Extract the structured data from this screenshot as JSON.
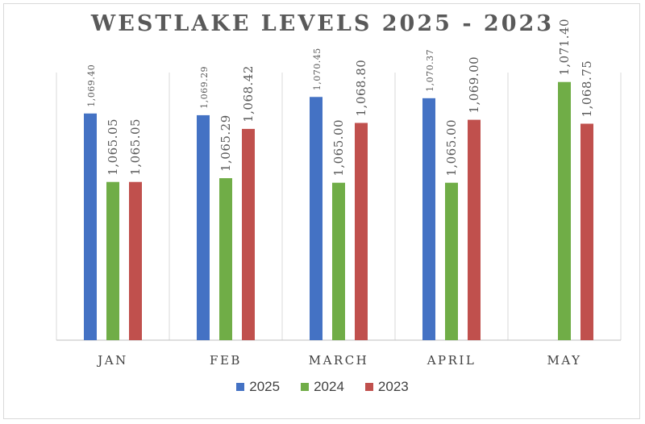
{
  "chart_data": {
    "type": "bar",
    "title": "WESTLAKE LEVELS 2025 - 2023",
    "categories": [
      "JAN",
      "FEB",
      "MARCH",
      "APRIL",
      "MAY"
    ],
    "series": [
      {
        "name": "2025",
        "color": "#4472c4",
        "values": [
          1069.4,
          1069.29,
          1070.45,
          1070.37,
          null
        ],
        "labels": [
          "1,069.40",
          "1,069.29",
          "1,070.45",
          "1,070.37",
          ""
        ]
      },
      {
        "name": "2024",
        "color": "#70ad47",
        "values": [
          1065.05,
          1065.29,
          1065.0,
          1065.0,
          1071.4
        ],
        "labels": [
          "1,065.05",
          "1,065.29",
          "1,065.00",
          "1,065.00",
          "1,071.40"
        ]
      },
      {
        "name": "2023",
        "color": "#c0504d",
        "values": [
          1065.05,
          1068.42,
          1068.8,
          1069.0,
          1068.75
        ],
        "labels": [
          "1,065.05",
          "1,068.42",
          "1,068.80",
          "1,069.00",
          "1,068.75"
        ]
      }
    ],
    "ylim": [
      1055,
      1072
    ],
    "grid": "vertical category separators",
    "legend": "bottom-center"
  }
}
